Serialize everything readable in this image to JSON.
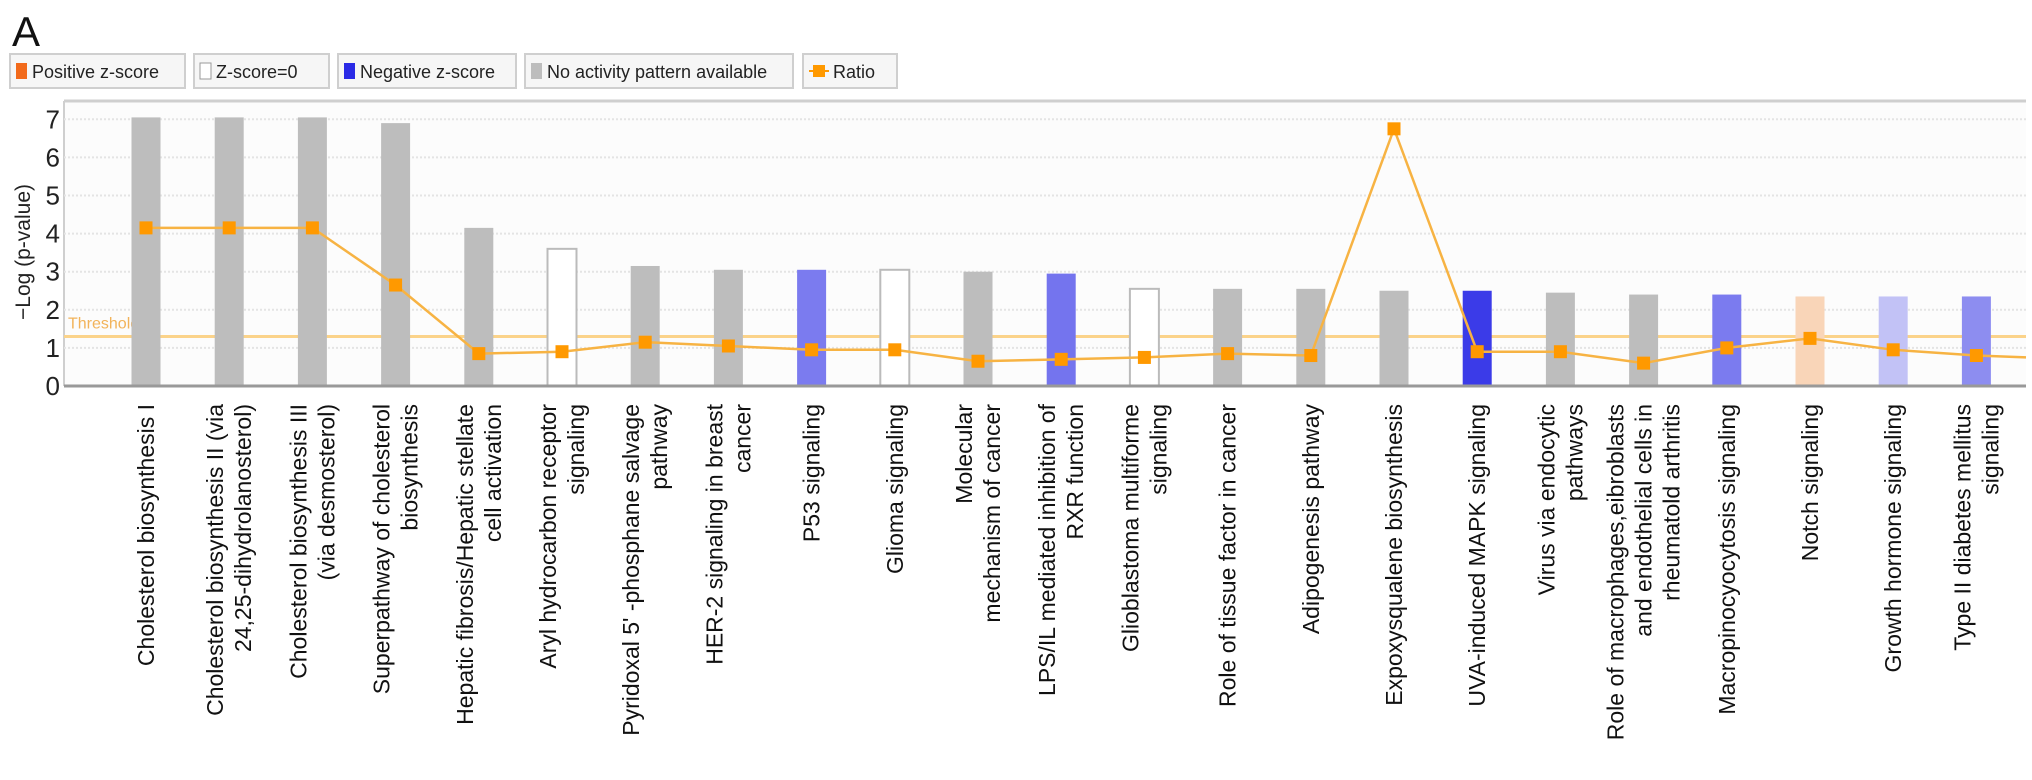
{
  "panel_label": "A",
  "chart_data": {
    "type": "bar",
    "title": "",
    "ylabel": "−Log (p-value)",
    "xlabel": "",
    "ylim": [
      0,
      7.4
    ],
    "yticks": [
      "0",
      "1",
      "2",
      "3",
      "4",
      "5",
      "6",
      "7"
    ],
    "grid": true,
    "legend_placement": "top-left",
    "legend": [
      {
        "label": "Positive z-score",
        "color": "#f26a1b",
        "kind": "box"
      },
      {
        "label": "Z-score=0",
        "color": "#ffffff",
        "kind": "box"
      },
      {
        "label": "Negative z-score",
        "color": "#2a2ae6",
        "kind": "box"
      },
      {
        "label": "No activity pattern available",
        "color": "#bdbdbd",
        "kind": "box"
      },
      {
        "label": "Ratio",
        "color": "#ff9900",
        "kind": "line"
      }
    ],
    "threshold": {
      "label": "Threshold",
      "value": 1.3,
      "color": "#fbd38a"
    },
    "categories": [
      [
        "Cholesterol biosynthesis I"
      ],
      [
        "Cholesterol biosynthesis II (via",
        "24,25-dihydrolanosterol)"
      ],
      [
        "Cholesterol biosynthesis III",
        "(via desmosterol)"
      ],
      [
        "Superpathway of cholesterol",
        "biosynthesis"
      ],
      [
        "Hepatic fibrosis/Hepatic stellate",
        "cell activation"
      ],
      [
        "Aryl hydrocarbon receptor",
        "signaling"
      ],
      [
        "Pyridoxal 5' -phosphane salvage",
        "pathway"
      ],
      [
        "HER-2 signaling in breast",
        "cancer"
      ],
      [
        "P53 signaling"
      ],
      [
        "Glioma signaling"
      ],
      [
        "Molecular",
        "mechanism of cancer"
      ],
      [
        "LPS/IL mediated inhibition of",
        "RXR function"
      ],
      [
        "Glioblastoma multiforme",
        "signaling"
      ],
      [
        "Role of tissue factor in cancer"
      ],
      [
        "Adipogenesis pathway"
      ],
      [
        "Expoxysqualene biosynthesis"
      ],
      [
        "UVA-induced MAPK signaling"
      ],
      [
        "Virus via endocytic",
        "pathways"
      ],
      [
        "Role of macrophages,eibroblasts",
        "and endothelial cells in",
        "rheumatold arthritis"
      ],
      [
        "Macropinocyocytosis signaling"
      ],
      [
        "Notch signaling"
      ],
      [
        "Growth hormone signaling"
      ],
      [
        "Type II diabetes mellitus",
        "signaling"
      ]
    ],
    "series": [
      {
        "name": "-Log (p-value)",
        "type": "bar",
        "values": [
          7.05,
          7.05,
          7.05,
          6.9,
          4.15,
          3.6,
          3.15,
          3.05,
          3.05,
          3.05,
          3.0,
          2.95,
          2.55,
          2.55,
          2.55,
          2.5,
          2.5,
          2.45,
          2.4,
          2.4,
          2.35,
          2.35,
          2.35
        ],
        "colors": [
          "#bdbdbd",
          "#bdbdbd",
          "#bdbdbd",
          "#bdbdbd",
          "#bdbdbd",
          "#ffffff",
          "#bdbdbd",
          "#bdbdbd",
          "#7b7bef",
          "#ffffff",
          "#bdbdbd",
          "#7474ee",
          "#ffffff",
          "#bdbdbd",
          "#bdbdbd",
          "#bdbdbd",
          "#3b3be8",
          "#bdbdbd",
          "#bdbdbd",
          "#7b7bef",
          "#f9d5b8",
          "#c2c2f6",
          "#8d8df0"
        ]
      },
      {
        "name": "Ratio",
        "type": "line",
        "color": "#ff9900",
        "values": [
          4.15,
          4.15,
          4.15,
          2.65,
          0.85,
          0.9,
          1.15,
          1.05,
          0.95,
          0.95,
          0.65,
          0.7,
          0.75,
          0.85,
          0.8,
          6.75,
          0.9,
          0.9,
          0.6,
          1.0,
          1.25,
          0.95,
          0.8
        ],
        "trailing_value": 0.75
      }
    ]
  }
}
